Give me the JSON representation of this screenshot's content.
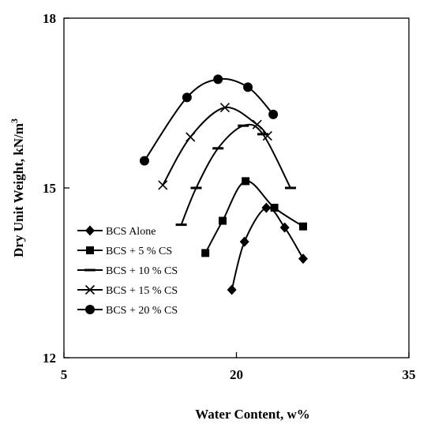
{
  "chart_data": {
    "type": "line",
    "xlabel": "Water Content, w%",
    "ylabel_prefix": "Dry Unit Weight, kN/m",
    "ylabel_sup": "3",
    "xlim": [
      5,
      35
    ],
    "ylim": [
      12,
      18
    ],
    "xticks": [
      "5",
      "20",
      "35"
    ],
    "yticks": [
      "12",
      "15",
      "18"
    ],
    "grid": false,
    "legend_position": "bottom-left",
    "series": [
      {
        "name": "BCS Alone",
        "marker": "diamond",
        "points": [
          [
            19.6,
            13.2
          ],
          [
            20.7,
            14.05
          ],
          [
            22.6,
            14.65
          ],
          [
            24.2,
            14.3
          ],
          [
            25.8,
            13.75
          ]
        ]
      },
      {
        "name": "BCS + 5 % CS",
        "marker": "square",
        "points": [
          [
            17.3,
            13.85
          ],
          [
            18.8,
            14.42
          ],
          [
            20.8,
            15.12
          ],
          [
            23.3,
            14.65
          ],
          [
            25.8,
            14.32
          ]
        ]
      },
      {
        "name": "BCS + 10 % CS",
        "marker": "dash",
        "points": [
          [
            15.2,
            14.35
          ],
          [
            16.5,
            15.0
          ],
          [
            18.4,
            15.7
          ],
          [
            20.6,
            16.1
          ],
          [
            22.3,
            15.95
          ],
          [
            24.7,
            15.0
          ]
        ]
      },
      {
        "name": "BCS + 15 % CS",
        "marker": "x",
        "points": [
          [
            13.6,
            15.05
          ],
          [
            16.0,
            15.9
          ],
          [
            19.0,
            16.42
          ],
          [
            21.8,
            16.12
          ],
          [
            22.7,
            15.92
          ]
        ]
      },
      {
        "name": "BCS + 20 % CS",
        "marker": "circle",
        "points": [
          [
            12.0,
            15.48
          ],
          [
            15.7,
            16.6
          ],
          [
            18.4,
            16.92
          ],
          [
            21.0,
            16.78
          ],
          [
            23.2,
            16.3
          ]
        ]
      }
    ]
  }
}
